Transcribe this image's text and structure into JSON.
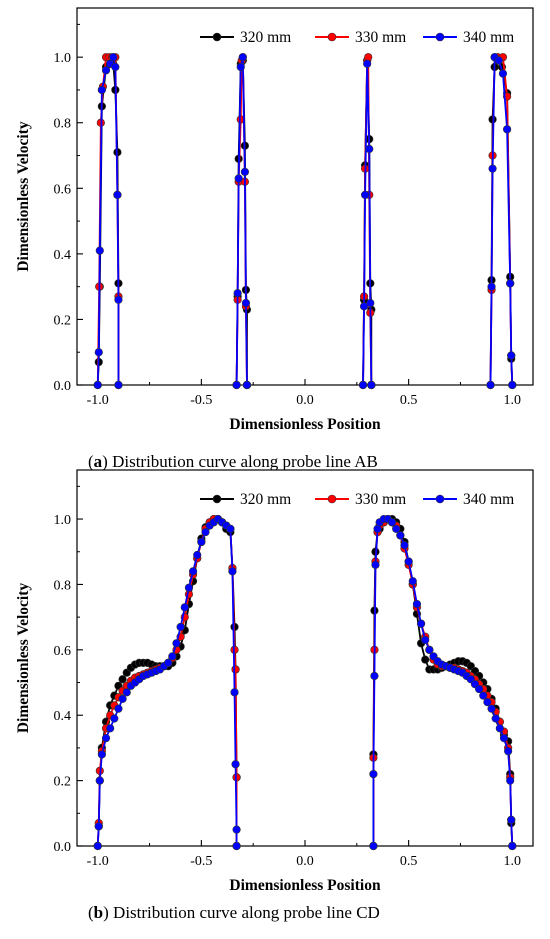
{
  "chart_data": [
    {
      "type": "line",
      "caption_letter": "a",
      "caption_text": ") Distribution curve along probe line AB",
      "xlabel": "Dimensionless Position",
      "ylabel": "Dimensionless Velocity",
      "xlim": [
        -1.1,
        1.1
      ],
      "ylim": [
        0.0,
        1.15
      ],
      "xticks": [
        -1.0,
        -0.5,
        0.0,
        0.5,
        1.0
      ],
      "xtick_labels": [
        "-1.0",
        "-0.5",
        "0.0",
        "0.5",
        "1.0"
      ],
      "yticks": [
        0.0,
        0.2,
        0.4,
        0.6,
        0.8,
        1.0
      ],
      "ytick_labels": [
        "0.0",
        "0.2",
        "0.4",
        "0.6",
        "0.8",
        "1.0"
      ],
      "grid": false,
      "legend_position": "top-right",
      "series": [
        {
          "name": "320 mm",
          "color": "#000000",
          "segments": [
            {
              "x": [
                -1.0,
                -0.995,
                -0.99,
                -0.98,
                -0.96,
                -0.94,
                -0.925,
                -0.915,
                -0.905,
                -0.9,
                -0.9
              ],
              "y": [
                0.0,
                0.07,
                0.3,
                0.85,
                0.97,
                0.98,
                0.98,
                0.9,
                0.71,
                0.31,
                0.0
              ]
            },
            {
              "x": [
                -0.33,
                -0.325,
                -0.32,
                -0.31,
                -0.3,
                -0.29,
                -0.285,
                -0.28,
                -0.28
              ],
              "y": [
                0.0,
                0.27,
                0.69,
                0.98,
                0.99,
                0.73,
                0.29,
                0.23,
                0.0
              ]
            },
            {
              "x": [
                0.28,
                0.285,
                0.29,
                0.3,
                0.31,
                0.315,
                0.32,
                0.32
              ],
              "y": [
                0.0,
                0.26,
                0.67,
                0.99,
                0.75,
                0.31,
                0.23,
                0.0
              ]
            },
            {
              "x": [
                0.895,
                0.9,
                0.905,
                0.915,
                0.93,
                0.95,
                0.975,
                0.99,
                0.995,
                1.0
              ],
              "y": [
                0.0,
                0.32,
                0.81,
                0.97,
                0.99,
                0.97,
                0.89,
                0.33,
                0.08,
                0.0
              ]
            }
          ]
        },
        {
          "name": "330 mm",
          "color": "#ff0000",
          "segments": [
            {
              "x": [
                -1.0,
                -0.993,
                -0.985,
                -0.975,
                -0.96,
                -0.945,
                -0.93,
                -0.915,
                -0.905,
                -0.9,
                -0.9
              ],
              "y": [
                0.0,
                0.3,
                0.8,
                0.91,
                1.0,
                1.0,
                1.0,
                1.0,
                0.58,
                0.27,
                0.0
              ]
            },
            {
              "x": [
                -0.33,
                -0.325,
                -0.32,
                -0.31,
                -0.305,
                -0.3,
                -0.29,
                -0.285,
                -0.28,
                -0.28
              ],
              "y": [
                0.0,
                0.26,
                0.62,
                0.81,
                0.99,
                1.0,
                0.62,
                0.24,
                0.0,
                0.0
              ]
            },
            {
              "x": [
                0.28,
                0.285,
                0.29,
                0.3,
                0.305,
                0.31,
                0.315,
                0.32,
                0.32
              ],
              "y": [
                0.0,
                0.27,
                0.66,
                0.99,
                1.0,
                0.58,
                0.22,
                0.0,
                0.0
              ]
            },
            {
              "x": [
                0.895,
                0.9,
                0.905,
                0.915,
                0.93,
                0.955,
                0.975,
                0.99,
                0.995,
                1.0
              ],
              "y": [
                0.0,
                0.29,
                0.7,
                1.0,
                1.0,
                1.0,
                0.88,
                0.31,
                0.09,
                0.0
              ]
            }
          ]
        },
        {
          "name": "340 mm",
          "color": "#0000ff",
          "segments": [
            {
              "x": [
                -1.0,
                -0.995,
                -0.99,
                -0.98,
                -0.96,
                -0.94,
                -0.925,
                -0.915,
                -0.905,
                -0.9,
                -0.9
              ],
              "y": [
                0.0,
                0.1,
                0.41,
                0.9,
                0.96,
                0.98,
                1.0,
                0.97,
                0.58,
                0.26,
                0.0
              ]
            },
            {
              "x": [
                -0.33,
                -0.325,
                -0.32,
                -0.31,
                -0.3,
                -0.29,
                -0.285,
                -0.28,
                -0.28
              ],
              "y": [
                0.0,
                0.28,
                0.63,
                0.97,
                1.0,
                0.65,
                0.25,
                0.0,
                0.0
              ]
            },
            {
              "x": [
                0.28,
                0.285,
                0.29,
                0.3,
                0.31,
                0.315,
                0.32,
                0.32
              ],
              "y": [
                0.0,
                0.24,
                0.58,
                0.98,
                0.72,
                0.25,
                0.0,
                0.0
              ]
            },
            {
              "x": [
                0.895,
                0.9,
                0.905,
                0.915,
                0.935,
                0.955,
                0.975,
                0.99,
                0.995,
                1.0
              ],
              "y": [
                0.0,
                0.3,
                0.66,
                1.0,
                0.99,
                0.95,
                0.78,
                0.31,
                0.09,
                0.0
              ]
            }
          ]
        }
      ]
    },
    {
      "type": "line",
      "caption_letter": "b",
      "caption_text": ") Distribution curve along probe line CD",
      "xlabel": "Dimensionless Position",
      "ylabel": "Dimensionless Velocity",
      "xlim": [
        -1.1,
        1.1
      ],
      "ylim": [
        0.0,
        1.15
      ],
      "xticks": [
        -1.0,
        -0.5,
        0.0,
        0.5,
        1.0
      ],
      "xtick_labels": [
        "-1.0",
        "-0.5",
        "0.0",
        "0.5",
        "1.0"
      ],
      "yticks": [
        0.0,
        0.2,
        0.4,
        0.6,
        0.8,
        1.0
      ],
      "ytick_labels": [
        "0.0",
        "0.2",
        "0.4",
        "0.6",
        "0.8",
        "1.0"
      ],
      "grid": false,
      "legend_position": "top-right",
      "series": [
        {
          "name": "320 mm",
          "color": "#000000",
          "segments": [
            {
              "x": [
                -1.0,
                -0.995,
                -0.99,
                -0.98,
                -0.96,
                -0.94,
                -0.92,
                -0.9,
                -0.88,
                -0.86,
                -0.84,
                -0.82,
                -0.8,
                -0.78,
                -0.76,
                -0.74,
                -0.72,
                -0.7,
                -0.68,
                -0.66,
                -0.64,
                -0.62,
                -0.6,
                -0.58,
                -0.56,
                -0.54,
                -0.52,
                -0.5,
                -0.48,
                -0.46,
                -0.44,
                -0.42,
                -0.4,
                -0.38,
                -0.36,
                -0.35,
                -0.34,
                -0.335,
                -0.33,
                -0.33
              ],
              "y": [
                0.0,
                0.06,
                0.2,
                0.3,
                0.38,
                0.43,
                0.46,
                0.49,
                0.51,
                0.53,
                0.545,
                0.555,
                0.56,
                0.56,
                0.56,
                0.555,
                0.55,
                0.55,
                0.55,
                0.55,
                0.56,
                0.58,
                0.61,
                0.66,
                0.74,
                0.81,
                0.88,
                0.94,
                0.975,
                0.99,
                1.0,
                1.0,
                0.99,
                0.97,
                0.96,
                0.85,
                0.67,
                0.54,
                0.21,
                0.0
              ]
            },
            {
              "x": [
                0.33,
                0.33,
                0.335,
                0.34,
                0.35,
                0.36,
                0.38,
                0.4,
                0.42,
                0.44,
                0.46,
                0.48,
                0.5,
                0.52,
                0.54,
                0.56,
                0.58,
                0.6,
                0.62,
                0.64,
                0.66,
                0.68,
                0.7,
                0.72,
                0.74,
                0.76,
                0.78,
                0.8,
                0.82,
                0.84,
                0.86,
                0.88,
                0.9,
                0.92,
                0.94,
                0.96,
                0.98,
                0.99,
                0.995,
                1.0
              ],
              "y": [
                0.0,
                0.28,
                0.72,
                0.9,
                0.96,
                0.97,
                0.99,
                1.0,
                1.0,
                0.99,
                0.97,
                0.93,
                0.87,
                0.8,
                0.71,
                0.62,
                0.57,
                0.54,
                0.54,
                0.54,
                0.545,
                0.55,
                0.555,
                0.56,
                0.565,
                0.565,
                0.56,
                0.55,
                0.535,
                0.52,
                0.5,
                0.48,
                0.45,
                0.42,
                0.38,
                0.34,
                0.32,
                0.22,
                0.07,
                0.0
              ]
            }
          ]
        },
        {
          "name": "330 mm",
          "color": "#ff0000",
          "segments": [
            {
              "x": [
                -1.0,
                -0.995,
                -0.99,
                -0.98,
                -0.96,
                -0.94,
                -0.92,
                -0.9,
                -0.88,
                -0.86,
                -0.84,
                -0.82,
                -0.8,
                -0.78,
                -0.76,
                -0.74,
                -0.72,
                -0.7,
                -0.68,
                -0.66,
                -0.64,
                -0.62,
                -0.6,
                -0.58,
                -0.56,
                -0.54,
                -0.52,
                -0.5,
                -0.48,
                -0.46,
                -0.44,
                -0.42,
                -0.4,
                -0.38,
                -0.36,
                -0.35,
                -0.34,
                -0.335,
                -0.33,
                -0.33
              ],
              "y": [
                0.0,
                0.07,
                0.23,
                0.29,
                0.36,
                0.4,
                0.43,
                0.455,
                0.475,
                0.49,
                0.505,
                0.515,
                0.52,
                0.525,
                0.53,
                0.535,
                0.54,
                0.545,
                0.55,
                0.56,
                0.575,
                0.6,
                0.64,
                0.7,
                0.77,
                0.83,
                0.88,
                0.93,
                0.97,
                0.99,
                1.0,
                1.0,
                0.99,
                0.98,
                0.97,
                0.85,
                0.6,
                0.54,
                0.21,
                0.0
              ]
            },
            {
              "x": [
                0.33,
                0.33,
                0.335,
                0.34,
                0.35,
                0.36,
                0.38,
                0.4,
                0.42,
                0.44,
                0.46,
                0.48,
                0.5,
                0.52,
                0.54,
                0.56,
                0.58,
                0.6,
                0.62,
                0.64,
                0.66,
                0.68,
                0.7,
                0.72,
                0.74,
                0.76,
                0.78,
                0.8,
                0.82,
                0.84,
                0.86,
                0.88,
                0.9,
                0.92,
                0.94,
                0.96,
                0.98,
                0.99,
                0.995,
                1.0
              ],
              "y": [
                0.0,
                0.27,
                0.6,
                0.87,
                0.96,
                0.98,
                0.99,
                1.0,
                0.99,
                0.98,
                0.95,
                0.91,
                0.86,
                0.8,
                0.73,
                0.68,
                0.64,
                0.6,
                0.57,
                0.555,
                0.55,
                0.55,
                0.545,
                0.545,
                0.54,
                0.535,
                0.53,
                0.52,
                0.51,
                0.495,
                0.48,
                0.46,
                0.44,
                0.41,
                0.38,
                0.35,
                0.3,
                0.21,
                0.08,
                0.0
              ]
            }
          ]
        },
        {
          "name": "340 mm",
          "color": "#0000ff",
          "segments": [
            {
              "x": [
                -1.0,
                -0.995,
                -0.99,
                -0.98,
                -0.96,
                -0.94,
                -0.92,
                -0.9,
                -0.88,
                -0.86,
                -0.84,
                -0.82,
                -0.8,
                -0.78,
                -0.76,
                -0.74,
                -0.72,
                -0.7,
                -0.68,
                -0.66,
                -0.64,
                -0.62,
                -0.6,
                -0.58,
                -0.56,
                -0.54,
                -0.52,
                -0.5,
                -0.48,
                -0.46,
                -0.44,
                -0.42,
                -0.4,
                -0.38,
                -0.36,
                -0.35,
                -0.34,
                -0.335,
                -0.33,
                -0.33
              ],
              "y": [
                0.0,
                0.06,
                0.2,
                0.28,
                0.33,
                0.36,
                0.39,
                0.42,
                0.45,
                0.47,
                0.49,
                0.5,
                0.51,
                0.52,
                0.525,
                0.53,
                0.535,
                0.54,
                0.55,
                0.56,
                0.58,
                0.62,
                0.67,
                0.73,
                0.79,
                0.84,
                0.89,
                0.93,
                0.96,
                0.98,
                0.99,
                1.0,
                0.99,
                0.98,
                0.97,
                0.84,
                0.47,
                0.25,
                0.05,
                0.0
              ]
            },
            {
              "x": [
                0.33,
                0.33,
                0.335,
                0.34,
                0.35,
                0.36,
                0.38,
                0.4,
                0.42,
                0.44,
                0.46,
                0.48,
                0.5,
                0.52,
                0.54,
                0.56,
                0.58,
                0.6,
                0.62,
                0.64,
                0.66,
                0.68,
                0.7,
                0.72,
                0.74,
                0.76,
                0.78,
                0.8,
                0.82,
                0.84,
                0.86,
                0.88,
                0.9,
                0.92,
                0.94,
                0.96,
                0.98,
                0.99,
                0.995,
                1.0
              ],
              "y": [
                0.0,
                0.22,
                0.52,
                0.86,
                0.97,
                0.99,
                1.0,
                1.0,
                0.99,
                0.97,
                0.95,
                0.92,
                0.87,
                0.81,
                0.74,
                0.68,
                0.63,
                0.6,
                0.58,
                0.565,
                0.555,
                0.55,
                0.545,
                0.54,
                0.535,
                0.53,
                0.52,
                0.51,
                0.495,
                0.48,
                0.46,
                0.44,
                0.42,
                0.39,
                0.36,
                0.33,
                0.29,
                0.2,
                0.08,
                0.0
              ]
            }
          ]
        }
      ]
    }
  ]
}
